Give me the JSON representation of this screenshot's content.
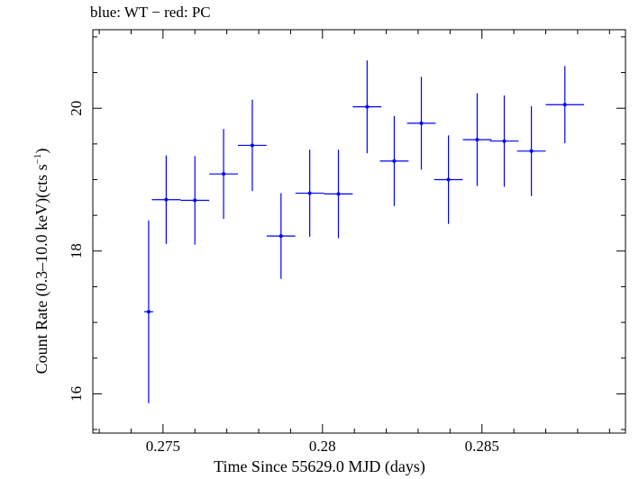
{
  "header": {
    "legend_text": "blue: WT − red: PC"
  },
  "chart_data": {
    "type": "scatter",
    "title": "",
    "xlabel": "Time Since 55629.0 MJD (days)",
    "ylabel_main": "Count Rate (0.3–10.0 keV)(cts s",
    "ylabel_sup": "−1",
    "ylabel_end": ")",
    "xlim": [
      0.2728,
      0.2895
    ],
    "ylim": [
      15.45,
      21.1
    ],
    "x_ticks": [
      0.275,
      0.28,
      0.285
    ],
    "x_tick_labels": [
      "0.275",
      "0.28",
      "0.285"
    ],
    "y_ticks": [
      16,
      18,
      20
    ],
    "y_tick_labels": [
      "16",
      "18",
      "20"
    ],
    "grid": false,
    "series": [
      {
        "color": "#0000ff",
        "points": [
          {
            "x": 0.27455,
            "y": 17.15,
            "xerr": 0.00014,
            "yerr": 1.28
          },
          {
            "x": 0.2751,
            "y": 18.72,
            "xerr": 0.00045,
            "yerr": 0.62
          },
          {
            "x": 0.276,
            "y": 18.71,
            "xerr": 0.00045,
            "yerr": 0.62
          },
          {
            "x": 0.2769,
            "y": 19.08,
            "xerr": 0.00045,
            "yerr": 0.63
          },
          {
            "x": 0.2778,
            "y": 19.48,
            "xerr": 0.00045,
            "yerr": 0.64
          },
          {
            "x": 0.2787,
            "y": 18.21,
            "xerr": 0.00045,
            "yerr": 0.6
          },
          {
            "x": 0.2796,
            "y": 18.81,
            "xerr": 0.00045,
            "yerr": 0.61
          },
          {
            "x": 0.2805,
            "y": 18.8,
            "xerr": 0.00045,
            "yerr": 0.62
          },
          {
            "x": 0.2814,
            "y": 20.02,
            "xerr": 0.00045,
            "yerr": 0.65
          },
          {
            "x": 0.28225,
            "y": 19.26,
            "xerr": 0.00045,
            "yerr": 0.63
          },
          {
            "x": 0.2831,
            "y": 19.79,
            "xerr": 0.00045,
            "yerr": 0.65
          },
          {
            "x": 0.28395,
            "y": 19.0,
            "xerr": 0.00045,
            "yerr": 0.62
          },
          {
            "x": 0.28485,
            "y": 19.56,
            "xerr": 0.00045,
            "yerr": 0.65
          },
          {
            "x": 0.2857,
            "y": 19.54,
            "xerr": 0.00045,
            "yerr": 0.64
          },
          {
            "x": 0.28655,
            "y": 19.4,
            "xerr": 0.00045,
            "yerr": 0.63
          },
          {
            "x": 0.2876,
            "y": 20.05,
            "xerr": 0.0006,
            "yerr": 0.54
          }
        ]
      }
    ]
  }
}
